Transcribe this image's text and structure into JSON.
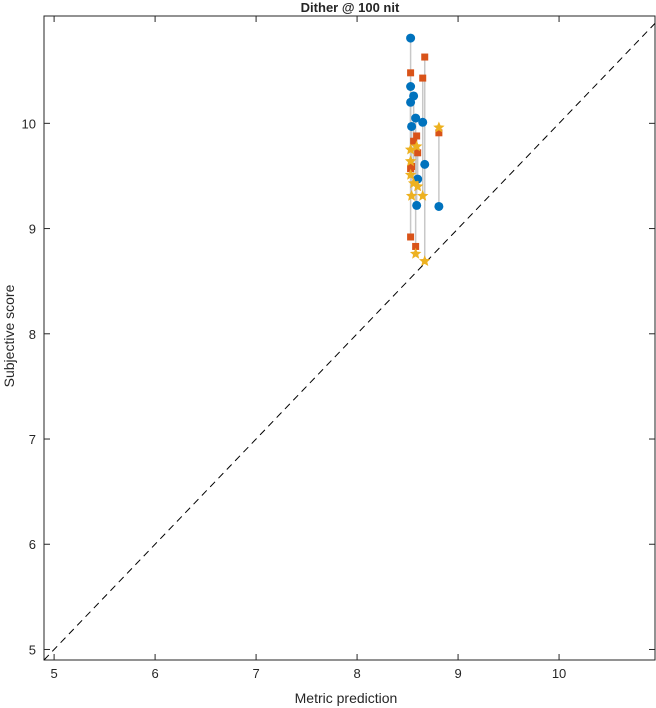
{
  "chart_data": {
    "type": "scatter",
    "title": "Dither @ 100 nit",
    "xlabel": "Metric prediction",
    "ylabel": "Subjective score",
    "xlim": [
      4.9,
      10.95
    ],
    "ylim": [
      4.9,
      11.02
    ],
    "xticks": [
      "5",
      "6",
      "7",
      "8",
      "9",
      "10"
    ],
    "yticks": [
      "5",
      "6",
      "7",
      "8",
      "9",
      "10"
    ],
    "grid": false,
    "diagonal": "dashed y=x",
    "colors": {
      "circle": "#0072BD",
      "square": "#D95319",
      "star": "#EDB120",
      "stem": "#C8C8C8"
    },
    "series": [
      {
        "name": "circle",
        "marker": "circle",
        "x": [
          8.81,
          8.67,
          8.65,
          8.58,
          8.59,
          8.6,
          8.56,
          8.53,
          8.53,
          8.53,
          8.54
        ],
        "y": [
          9.21,
          9.61,
          10.01,
          10.05,
          9.22,
          9.47,
          10.26,
          10.81,
          10.35,
          10.2,
          9.97
        ]
      },
      {
        "name": "square",
        "marker": "square",
        "x": [
          8.81,
          8.67,
          8.65,
          8.58,
          8.59,
          8.6,
          8.56,
          8.53,
          8.53,
          8.53,
          8.54
        ],
        "y": [
          9.91,
          10.63,
          10.43,
          8.83,
          9.88,
          9.72,
          9.83,
          10.48,
          9.57,
          8.92,
          9.59
        ]
      },
      {
        "name": "star",
        "marker": "star",
        "x": [
          8.81,
          8.67,
          8.65,
          8.58,
          8.59,
          8.6,
          8.56,
          8.53,
          8.53,
          8.53,
          8.54
        ],
        "y": [
          9.96,
          8.69,
          9.31,
          8.76,
          9.78,
          9.4,
          9.43,
          9.75,
          9.64,
          9.51,
          9.31
        ]
      }
    ]
  }
}
